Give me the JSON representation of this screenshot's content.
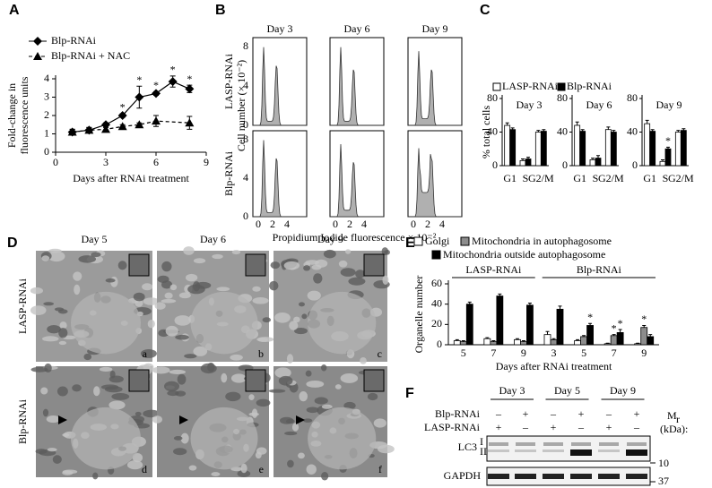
{
  "panel_labels": [
    "A",
    "B",
    "C",
    "D",
    "E",
    "F"
  ],
  "chart_data": [
    {
      "type": "line",
      "xlabel": "Days after RNAi treatment",
      "ylabel": [
        "Fold-change in",
        "fluorescence units"
      ],
      "xlim": [
        0,
        9
      ],
      "xticks": [
        0,
        3,
        6,
        9
      ],
      "ylim": [
        0,
        4
      ],
      "yticks": [
        0,
        1,
        2,
        3,
        4
      ],
      "series": [
        {
          "name": "Blp-RNAi",
          "color": "#000000",
          "marker": "diamond",
          "line": "solid",
          "x": [
            1,
            2,
            3,
            4,
            5,
            6,
            7,
            8
          ],
          "values": [
            1.1,
            1.2,
            1.5,
            2.0,
            3.0,
            3.2,
            3.85,
            3.45
          ],
          "errors": [
            0.15,
            0.15,
            0.1,
            0.1,
            0.6,
            0.1,
            0.3,
            0.2
          ],
          "markers": [
            null,
            null,
            null,
            "*",
            "*",
            "*",
            "*",
            "*"
          ]
        },
        {
          "name": "Blp-RNAi + NAC",
          "color": "#000000",
          "marker": "triangle",
          "line": "dashed",
          "x": [
            1,
            2,
            3,
            4,
            5,
            6,
            8
          ],
          "values": [
            1.1,
            1.2,
            1.25,
            1.4,
            1.5,
            1.7,
            1.6
          ],
          "errors": [
            0.15,
            0.15,
            0.1,
            0.1,
            0.1,
            0.3,
            0.35
          ]
        }
      ]
    },
    {
      "type": "bar",
      "ylabel": "% total cells",
      "categories": [
        "G1",
        "S",
        "G2/M"
      ],
      "ylim": [
        0,
        80
      ],
      "yticks": [
        0,
        40,
        80
      ],
      "series": [
        {
          "name": "LASP-RNAi",
          "color": "#ffffff"
        },
        {
          "name": "Blp-RNAi",
          "color": "#000000"
        }
      ],
      "facets": [
        {
          "title": "Day 3",
          "values": [
            [
              48,
              6,
              40
            ],
            [
              43,
              8,
              41
            ]
          ],
          "errors": [
            [
              3,
              2,
              2
            ],
            [
              2,
              2,
              2
            ]
          ]
        },
        {
          "title": "Day 6",
          "values": [
            [
              48,
              7,
              43
            ],
            [
              41,
              9,
              40
            ]
          ],
          "errors": [
            [
              4,
              2,
              3
            ],
            [
              2,
              3,
              2
            ]
          ]
        },
        {
          "title": "Day 9",
          "values": [
            [
              50,
              5,
              40
            ],
            [
              41,
              20,
              42
            ]
          ],
          "errors": [
            [
              4,
              2,
              2
            ],
            [
              2,
              2,
              2
            ]
          ],
          "markers": [
            [
              null,
              null,
              null
            ],
            [
              null,
              "*",
              null
            ]
          ]
        }
      ]
    },
    {
      "type": "bar",
      "xlabel": "Days after RNAi treatment",
      "ylabel": "Organelle number",
      "groups": [
        {
          "label": "LASP-RNAi",
          "categories": [
            "5",
            "7",
            "9"
          ]
        },
        {
          "label": "Blp-RNAi",
          "categories": [
            "3",
            "5",
            "7",
            "9"
          ]
        }
      ],
      "ylim": [
        0,
        60
      ],
      "yticks": [
        0,
        20,
        40,
        60
      ],
      "series": [
        {
          "name": "Golgi",
          "color": "#ffffff",
          "values": [
            4,
            6,
            5,
            10,
            4,
            1,
            1
          ],
          "errors": [
            1,
            1,
            1,
            3,
            1,
            0.5,
            0.5
          ]
        },
        {
          "name": "Mitochondria in autophagosome",
          "color": "#8c8c8c",
          "values": [
            3,
            3,
            3,
            5,
            8,
            9,
            17
          ],
          "errors": [
            1,
            1,
            1,
            1,
            1,
            1,
            2
          ],
          "markers": [
            null,
            null,
            null,
            null,
            null,
            "*",
            "*"
          ]
        },
        {
          "name": "Mitochondria outside autophagosome",
          "color": "#000000",
          "values": [
            40,
            48,
            39,
            35,
            19,
            12,
            8
          ],
          "errors": [
            2,
            2,
            2,
            3,
            2,
            3,
            2
          ],
          "markers": [
            null,
            null,
            null,
            null,
            "*",
            "*",
            null
          ]
        }
      ]
    }
  ],
  "panel_b": {
    "columns": [
      "Day 3",
      "Day 6",
      "Day 9"
    ],
    "rows": [
      "LASP-RNAi",
      "Blp-RNAi"
    ],
    "ylabel": "Cell number (× 10⁻²)",
    "xlabel": "Propidium Iodide fluorescence × 10⁻²",
    "yticks": [
      0,
      4,
      8
    ],
    "xticks": [
      0,
      2,
      4
    ]
  },
  "panel_d": {
    "columns": [
      "Day 5",
      "Day 6",
      "Day 9"
    ],
    "rows": [
      "LASP-RNAi",
      "Blp-RNAi"
    ],
    "letters": [
      "a",
      "b",
      "c",
      "d",
      "e",
      "f"
    ]
  },
  "panel_f": {
    "days": [
      "Day 3",
      "Day 5",
      "Day 9"
    ],
    "rows": [
      {
        "label": "Blp-RNAi",
        "signs": [
          "–",
          "+",
          "–",
          "+",
          "–",
          "+"
        ]
      },
      {
        "label": "LASP-RNAi",
        "signs": [
          "+",
          "–",
          "+",
          "–",
          "+",
          "–"
        ]
      }
    ],
    "mass_label": "M",
    "mass_label_sub": "r",
    "units": "(kDa):",
    "bands": [
      {
        "label": "LC3",
        "sup": "I",
        "sub": "II"
      },
      {
        "label": "GAPDH"
      }
    ],
    "size_markers": [
      10,
      37
    ]
  }
}
